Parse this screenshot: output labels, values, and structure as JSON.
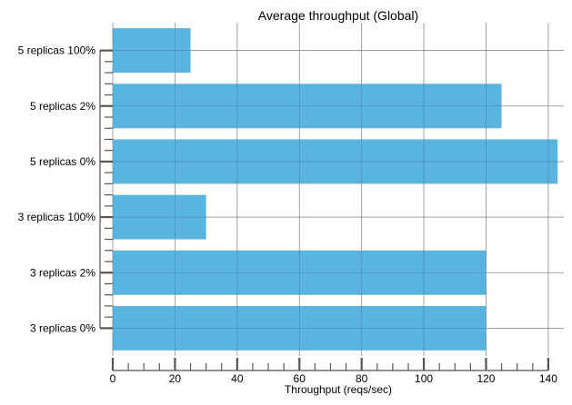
{
  "chart_data": {
    "type": "bar",
    "orientation": "horizontal",
    "title": "Average throughput (Global)",
    "xlabel": "Throughput (reqs/sec)",
    "ylabel": "",
    "categories": [
      "3 replicas 0%",
      "3 replicas 2%",
      "3 replicas 100%",
      "5 replicas 0%",
      "5 replicas 2%",
      "5 replicas 100%"
    ],
    "values": [
      120,
      120,
      30,
      143,
      125,
      25
    ],
    "xlim": [
      0,
      145
    ],
    "xticks": [
      0,
      20,
      40,
      60,
      80,
      100,
      120,
      140
    ],
    "grid": true,
    "bar_color": "#5ab4e0",
    "grid_color": "#b0b0b0"
  }
}
